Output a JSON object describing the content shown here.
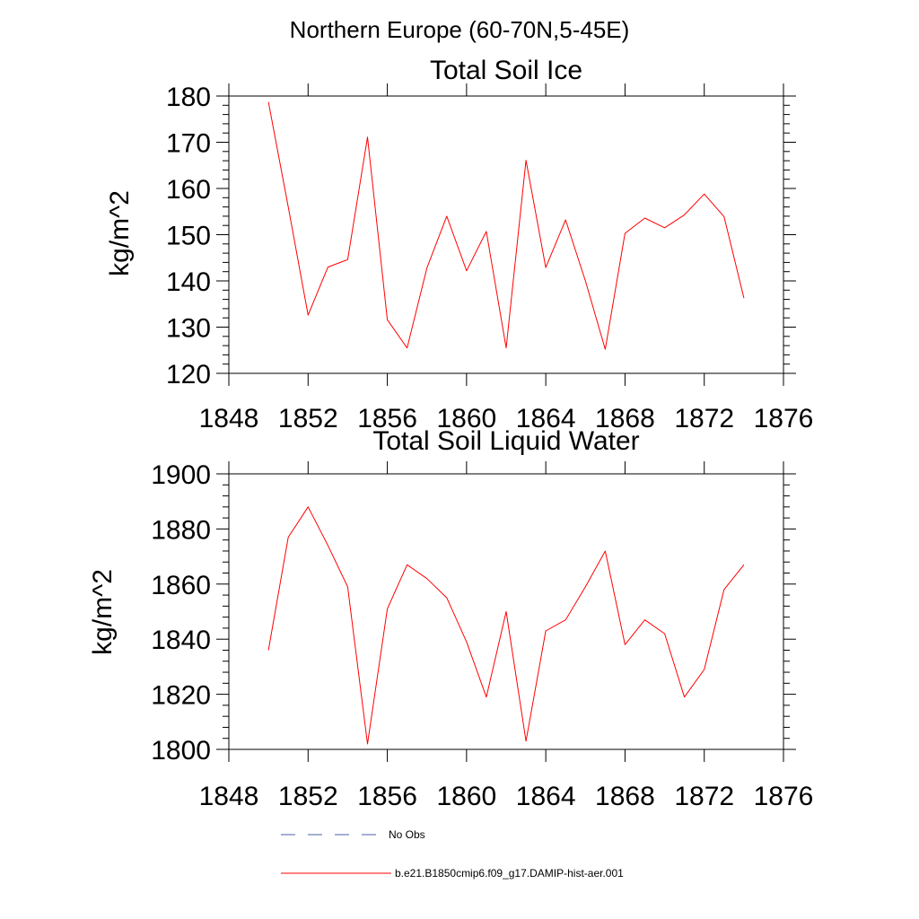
{
  "page_title": "Northern Europe (60-70N,5-45E)",
  "colors": {
    "series": "#ff0000",
    "no_obs": "#4b5fa6",
    "axis": "#000000"
  },
  "chart_data": [
    {
      "type": "line",
      "title": "Total Soil Ice",
      "ylabel": "kg/m^2",
      "xlabel": "",
      "xlim": [
        1848,
        1876
      ],
      "ylim": [
        120,
        180
      ],
      "xticks": [
        1848,
        1852,
        1856,
        1860,
        1864,
        1868,
        1872,
        1876
      ],
      "yticks": [
        120,
        130,
        140,
        150,
        160,
        170,
        180
      ],
      "x": [
        1850,
        1851,
        1852,
        1853,
        1854,
        1855,
        1856,
        1857,
        1858,
        1859,
        1860,
        1861,
        1862,
        1863,
        1864,
        1865,
        1866,
        1867,
        1868,
        1869,
        1870,
        1871,
        1872,
        1873,
        1874
      ],
      "series": [
        {
          "name": "b.e21.B1850cmip6.f09_g17.DAMIP-hist-aer.001",
          "values": [
            178.7,
            156.0,
            132.6,
            143.0,
            144.6,
            171.1,
            131.6,
            125.5,
            142.8,
            154.0,
            142.2,
            150.7,
            125.5,
            166.1,
            142.9,
            153.2,
            140.0,
            125.2,
            150.3,
            153.6,
            151.5,
            154.3,
            158.8,
            153.9,
            136.3
          ]
        }
      ]
    },
    {
      "type": "line",
      "title": "Total Soil Liquid Water",
      "ylabel": "kg/m^2",
      "xlabel": "",
      "xlim": [
        1848,
        1876
      ],
      "ylim": [
        1800,
        1900
      ],
      "xticks": [
        1848,
        1852,
        1856,
        1860,
        1864,
        1868,
        1872,
        1876
      ],
      "yticks": [
        1800,
        1820,
        1840,
        1860,
        1880,
        1900
      ],
      "x": [
        1850,
        1851,
        1852,
        1853,
        1854,
        1855,
        1856,
        1857,
        1858,
        1859,
        1860,
        1861,
        1862,
        1863,
        1864,
        1865,
        1866,
        1867,
        1868,
        1869,
        1870,
        1871,
        1872,
        1873,
        1874
      ],
      "series": [
        {
          "name": "b.e21.B1850cmip6.f09_g17.DAMIP-hist-aer.001",
          "values": [
            1836,
            1877,
            1888,
            1874,
            1859,
            1802,
            1851,
            1867,
            1862,
            1855,
            1839,
            1819,
            1850,
            1803,
            1843,
            1847,
            1859,
            1872,
            1838,
            1847,
            1842,
            1819,
            1829,
            1858,
            1867
          ]
        }
      ]
    }
  ],
  "legend": [
    {
      "label": "No Obs",
      "style": "dashed",
      "color_key": "no_obs"
    },
    {
      "label": "b.e21.B1850cmip6.f09_g17.DAMIP-hist-aer.001",
      "style": "solid",
      "color_key": "series"
    }
  ]
}
